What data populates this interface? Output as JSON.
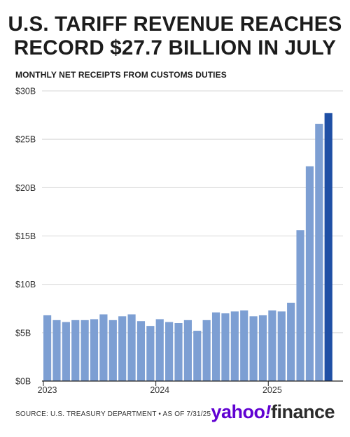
{
  "title": {
    "line1": "U.S. TARIFF REVENUE REACHES",
    "line2": "RECORD $27.7 BILLION IN JULY"
  },
  "subtitle": "MONTHLY NET RECEIPTS FROM CUSTOMS DUTIES",
  "footer": {
    "source": "SOURCE: U.S. TREASURY DEPARTMENT • AS OF 7/31/25",
    "logo_yahoo": "yahoo",
    "logo_bang": "!",
    "logo_finance": "finance"
  },
  "colors": {
    "bar": "#7d9fd3",
    "highlight": "#1f4fa5",
    "grid": "#d7d7d7",
    "logo_purple": "#6001d2"
  },
  "chart_data": {
    "type": "bar",
    "title": "MONTHLY NET RECEIPTS FROM CUSTOMS DUTIES",
    "x_tick_labels": [
      "2023",
      "2024",
      "2025"
    ],
    "y_tick_labels": [
      "$0B",
      "$5B",
      "$10B",
      "$15B",
      "$20B",
      "$25B",
      "$30B"
    ],
    "ylim": [
      0,
      30
    ],
    "grid": true,
    "highlight_last": true,
    "categories": [
      "2023-01",
      "2023-02",
      "2023-03",
      "2023-04",
      "2023-05",
      "2023-06",
      "2023-07",
      "2023-08",
      "2023-09",
      "2023-10",
      "2023-11",
      "2023-12",
      "2024-01",
      "2024-02",
      "2024-03",
      "2024-04",
      "2024-05",
      "2024-06",
      "2024-07",
      "2024-08",
      "2024-09",
      "2024-10",
      "2024-11",
      "2024-12",
      "2025-01",
      "2025-02",
      "2025-03",
      "2025-04",
      "2025-05",
      "2025-06",
      "2025-07"
    ],
    "values": [
      6.8,
      6.3,
      6.1,
      6.3,
      6.3,
      6.4,
      6.9,
      6.3,
      6.7,
      6.9,
      6.2,
      5.7,
      6.4,
      6.1,
      6.0,
      6.3,
      5.2,
      6.3,
      7.1,
      7.0,
      7.2,
      7.3,
      6.7,
      6.8,
      7.3,
      7.2,
      8.1,
      15.6,
      22.2,
      26.6,
      27.7
    ]
  }
}
